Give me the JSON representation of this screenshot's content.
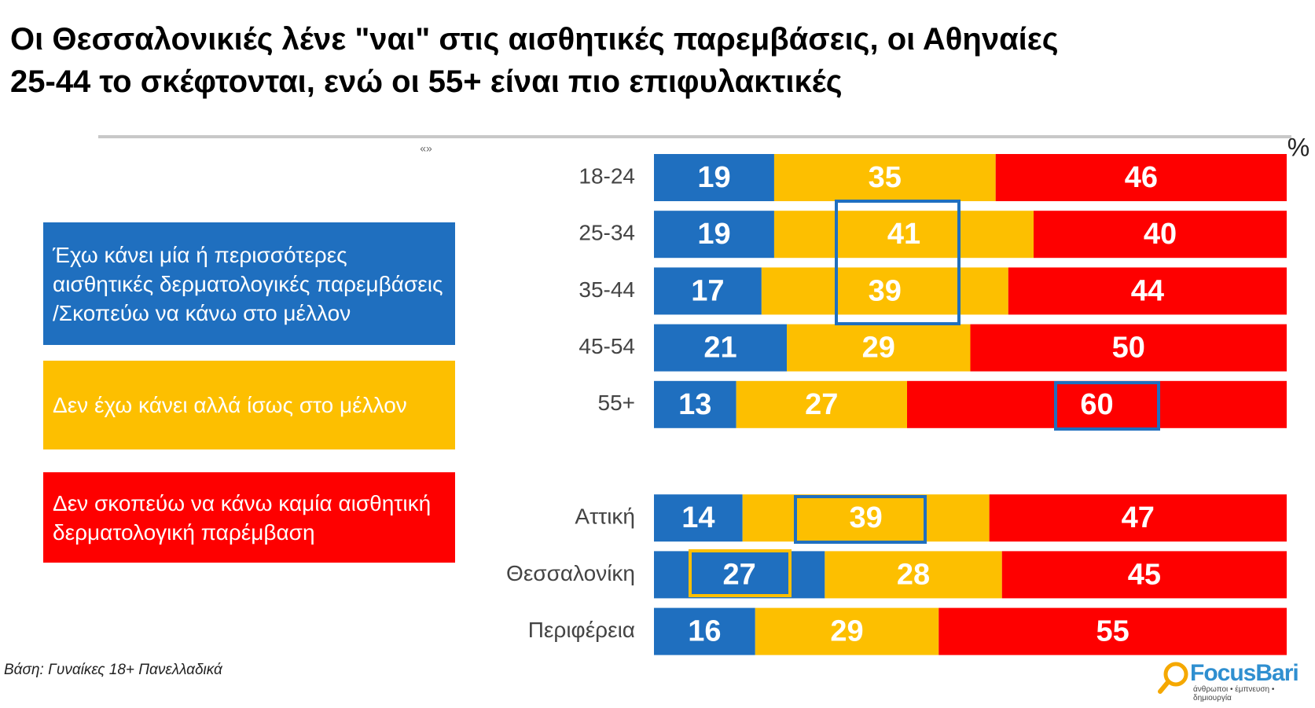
{
  "chart_data": {
    "type": "stacked-bar-horizontal",
    "title": [
      "Οι Θεσσαλονικιές λένε \"ναι\" στις αισθητικές παρεμβάσεις, οι Αθηναίες",
      "25-44 το σκέφτονται, ενώ οι 55+ είναι πιο επιφυλακτικές"
    ],
    "unit": "%",
    "marker": "«»",
    "categories": [
      "18-24",
      "25-34",
      "35-44",
      "45-54",
      "55+",
      null,
      "Αττική",
      "Θεσσαλονίκη",
      "Περιφέρεια"
    ],
    "series": [
      {
        "name": "Έχω κάνει μία ή περισσότερες αισθητικές δερματολογικές παρεμβάσεις /Σκοπεύω να κάνω στο μέλλον",
        "color": "#1f6fbf",
        "values": [
          19,
          19,
          17,
          21,
          13,
          null,
          14,
          27,
          16
        ]
      },
      {
        "name": "Δεν έχω κάνει αλλά ίσως στο μέλλον",
        "color": "#fdbf00",
        "values": [
          35,
          41,
          39,
          29,
          27,
          null,
          39,
          28,
          29
        ]
      },
      {
        "name": "Δεν σκοπεύω να κάνω καμία αισθητική δερματολογική παρέμβαση",
        "color": "#fe0000",
        "values": [
          46,
          40,
          44,
          50,
          60,
          null,
          47,
          45,
          55
        ]
      }
    ],
    "xlim": [
      0,
      100
    ],
    "footnote": "Βάση: Γυναίκες 18+ Πανελλαδικά",
    "logo": "FocusBari",
    "logo_tagline": "άνθρωποι • έμπνευση • δημιουργία"
  }
}
